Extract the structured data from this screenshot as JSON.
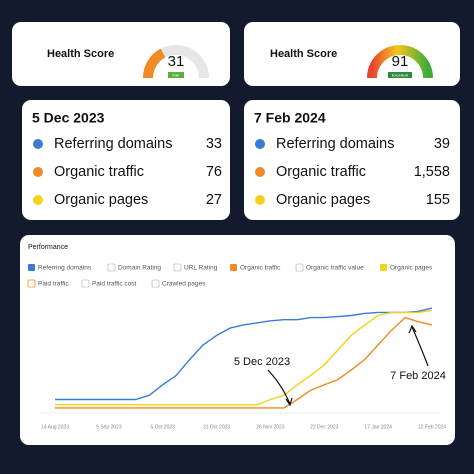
{
  "health_cards": [
    {
      "title": "Health Score",
      "score": 31,
      "badge": "Fair"
    },
    {
      "title": "Health Score",
      "score": 91,
      "badge": "Excellent"
    }
  ],
  "stat_cards": [
    {
      "date": "5 Dec 2023",
      "rows": [
        {
          "label": "Referring domains",
          "value": 33
        },
        {
          "label": "Organic traffic",
          "value": 76
        },
        {
          "label": "Organic pages",
          "value": 27
        }
      ]
    },
    {
      "date": "7 Feb 2024",
      "rows": [
        {
          "label": "Referring domains",
          "value": 39
        },
        {
          "label": "Organic traffic",
          "value": {
            "value": 1558,
            "label": "1,558"
          }
        },
        {
          "label": "Organic pages",
          "value": 155
        }
      ]
    }
  ],
  "chart_data": {
    "type": "line",
    "title": "Performance",
    "categories": [
      "14 Aug 2023",
      null,
      null,
      null,
      "9 Sep 2023",
      null,
      null,
      null,
      "5 Oct 2023",
      null,
      null,
      null,
      "31 Oct 2023",
      null,
      null,
      null,
      "26 Nov 2023",
      null,
      null,
      null,
      "22 Dec 2023",
      null,
      null,
      null,
      "17 Jan 2024",
      null,
      null,
      null,
      "12 Feb 2024"
    ],
    "ylim": [
      0,
      100
    ],
    "series": [
      {
        "name": "Referring domains",
        "color": "#3a7bd5",
        "values": [
          10,
          10,
          10,
          10,
          10,
          10,
          10,
          14,
          24,
          33,
          48,
          62,
          71,
          78,
          81,
          83,
          85,
          86,
          86,
          88,
          88,
          89,
          90,
          92,
          93,
          93,
          93,
          94,
          97
        ]
      },
      {
        "name": "Organic traffic",
        "color": "#f08a24",
        "values": [
          2,
          2,
          2,
          2,
          2,
          2,
          2,
          2,
          2,
          2,
          2,
          2,
          2,
          2,
          2,
          2,
          2,
          2,
          10,
          19,
          24,
          29,
          38,
          48,
          62,
          76,
          88,
          84,
          81
        ]
      },
      {
        "name": "Organic pages",
        "color": "#f2d21b",
        "values": [
          5,
          5,
          5,
          5,
          5,
          5,
          5,
          5,
          5,
          5,
          5,
          5,
          5,
          5,
          5,
          5,
          10,
          14,
          24,
          33,
          43,
          57,
          71,
          81,
          90,
          93,
          93,
          93,
          95
        ]
      }
    ],
    "other_metrics": [
      "Domain Rating",
      "URL Rating",
      "Organic traffic value",
      "Paid traffic",
      "Paid traffic cost",
      "Crawled pages"
    ],
    "annotations": [
      "5 Dec 2023",
      "7 Feb 2024"
    ]
  }
}
